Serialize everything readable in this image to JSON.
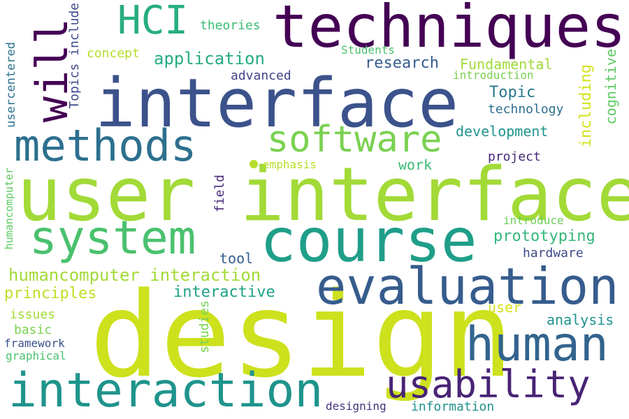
{
  "words": [
    {
      "text": "design",
      "color": "#cde11d"
    },
    {
      "text": "user interface",
      "color": "#a2da37"
    },
    {
      "text": "interface",
      "color": "#3b528b"
    },
    {
      "text": "techniques",
      "color": "#440154"
    },
    {
      "text": "course",
      "color": "#1f9e89"
    },
    {
      "text": "evaluation",
      "color": "#365c8d"
    },
    {
      "text": "interaction",
      "color": "#1f948c"
    },
    {
      "text": "human",
      "color": "#32648e"
    },
    {
      "text": "usability",
      "color": "#482475"
    },
    {
      "text": "system",
      "color": "#4ac16d"
    },
    {
      "text": "methods",
      "color": "#2d708e"
    },
    {
      "text": "software",
      "color": "#7ad151"
    },
    {
      "text": "will",
      "color": "#440154"
    },
    {
      "text": "HCI",
      "color": "#27ad81"
    },
    {
      "text": "humancomputer interaction",
      "color": "#a2da37"
    },
    {
      "text": "application",
      "color": "#25ab82"
    },
    {
      "text": "research",
      "color": "#365c8d"
    },
    {
      "text": "Fundamental",
      "color": "#9fda3a"
    },
    {
      "text": "prototyping",
      "color": "#35b779"
    },
    {
      "text": "development",
      "color": "#1f948c"
    },
    {
      "text": "Topic",
      "color": "#2a788e"
    },
    {
      "text": "principles",
      "color": "#bddf26"
    },
    {
      "text": "interactive",
      "color": "#1fa187"
    },
    {
      "text": "analysis",
      "color": "#20928c"
    },
    {
      "text": "user",
      "color": "#d8e219"
    },
    {
      "text": "theories",
      "color": "#3bbb75"
    },
    {
      "text": "concept",
      "color": "#b5de2b"
    },
    {
      "text": "advanced",
      "color": "#414487"
    },
    {
      "text": "Students",
      "color": "#4ac16d"
    },
    {
      "text": "introduction",
      "color": "#7ad151"
    },
    {
      "text": "technology",
      "color": "#2d708e"
    },
    {
      "text": "work",
      "color": "#3bbb75"
    },
    {
      "text": "emphasis",
      "color": "#b8de29"
    },
    {
      "text": "project",
      "color": "#482878"
    },
    {
      "text": "introduce",
      "color": "#6ece58"
    },
    {
      "text": "tool",
      "color": "#355f8d"
    },
    {
      "text": "hardware",
      "color": "#3e4a89"
    },
    {
      "text": "issues",
      "color": "#a2da37"
    },
    {
      "text": "basic",
      "color": "#7ad151"
    },
    {
      "text": "framework",
      "color": "#3b528b"
    },
    {
      "text": "graphical",
      "color": "#4ac16d"
    },
    {
      "text": "designing",
      "color": "#46327e"
    },
    {
      "text": "information",
      "color": "#21918c"
    },
    {
      "text": "including",
      "color": "#d2e21b"
    },
    {
      "text": "cognitive",
      "color": "#5ec962"
    },
    {
      "text": "field",
      "color": "#482878"
    },
    {
      "text": "studies",
      "color": "#7ad151"
    },
    {
      "text": "humancomputer",
      "color": "#5ec962"
    },
    {
      "text": "usercentered",
      "color": "#2c728e"
    },
    {
      "text": "Topics include",
      "color": "#3e4a89"
    }
  ],
  "dot_color": "#b5de2b"
}
